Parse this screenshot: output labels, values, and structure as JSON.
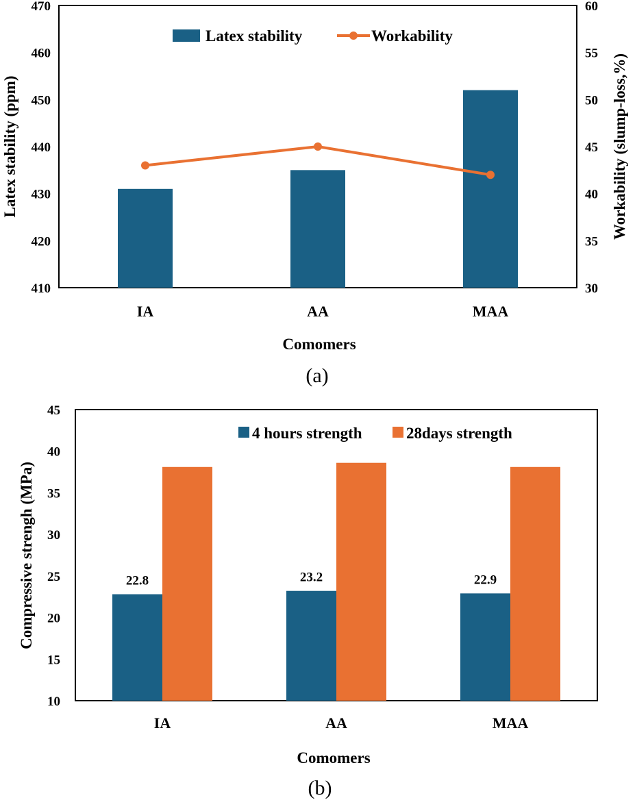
{
  "colors": {
    "blue": "#1a6085",
    "orange": "#e97132",
    "frame": "#000000"
  },
  "chart_data": [
    {
      "type": "bar",
      "caption": "(a)",
      "categories": [
        "IA",
        "AA",
        "MAA"
      ],
      "xlabel": "Comomers",
      "ylabel": "Latex stability (ppm)",
      "ylim": [
        410,
        470
      ],
      "yticks": [
        410,
        420,
        430,
        440,
        450,
        460,
        470
      ],
      "y2label": "Workability (slump-loss,%)",
      "y2lim": [
        30,
        60
      ],
      "y2ticks": [
        30,
        35,
        40,
        45,
        50,
        55,
        60
      ],
      "legend_position": "top-center",
      "series": [
        {
          "name": "Latex stability",
          "type": "bar",
          "axis": "left",
          "color": "#1a6085",
          "values": [
            431,
            435,
            452
          ]
        },
        {
          "name": "Workability",
          "type": "line",
          "axis": "right",
          "color": "#e97132",
          "values": [
            43,
            45,
            42
          ]
        }
      ]
    },
    {
      "type": "bar",
      "caption": "(b)",
      "categories": [
        "IA",
        "AA",
        "MAA"
      ],
      "xlabel": "Comomers",
      "ylabel": "Compressive strengh (MPa)",
      "ylim": [
        10,
        45
      ],
      "yticks": [
        10,
        15,
        20,
        25,
        30,
        35,
        40,
        45
      ],
      "legend_position": "top-right",
      "series": [
        {
          "name": "4 hours strength",
          "color": "#1a6085",
          "values": [
            22.8,
            23.2,
            22.9
          ],
          "labels": [
            "22.8",
            "23.2",
            "22.9"
          ]
        },
        {
          "name": "28days strength",
          "color": "#e97132",
          "values": [
            38.1,
            38.6,
            38.1
          ]
        }
      ]
    }
  ]
}
